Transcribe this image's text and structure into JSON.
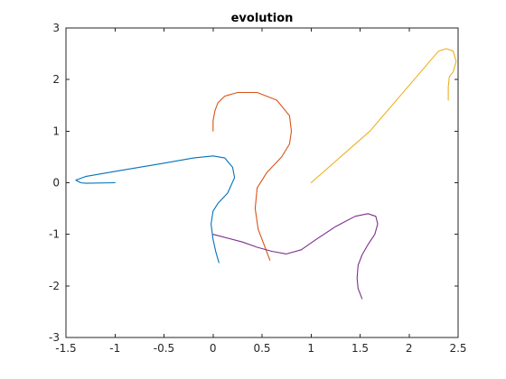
{
  "chart_data": {
    "type": "line",
    "title": "evolution",
    "xlabel": "",
    "ylabel": "",
    "xlim": [
      -1.5,
      2.5
    ],
    "ylim": [
      -3,
      3
    ],
    "xticks": [
      -1.5,
      -1,
      -0.5,
      0,
      0.5,
      1,
      1.5,
      2,
      2.5
    ],
    "yticks": [
      -3,
      -2,
      -1,
      0,
      1,
      2,
      3
    ],
    "xtick_labels": [
      "-1.5",
      "-1",
      "-0.5",
      "0",
      "0.5",
      "1",
      "1.5",
      "2",
      "2.5"
    ],
    "ytick_labels": [
      "-3",
      "-2",
      "-1",
      "0",
      "1",
      "2",
      "3"
    ],
    "grid": false,
    "series": [
      {
        "color": "#0072bd",
        "x": [
          -1.0,
          -1.3,
          -1.35,
          -1.4,
          -1.3,
          -1.0,
          -0.5,
          -0.2,
          0.0,
          0.12,
          0.2,
          0.22,
          0.15,
          0.05,
          0.0,
          -0.02,
          0.0,
          0.03,
          0.06
        ],
        "y": [
          0.0,
          -0.01,
          0.0,
          0.05,
          0.12,
          0.22,
          0.38,
          0.48,
          0.52,
          0.48,
          0.3,
          0.1,
          -0.2,
          -0.4,
          -0.55,
          -0.8,
          -1.1,
          -1.35,
          -1.55
        ]
      },
      {
        "color": "#d95319",
        "x": [
          0.0,
          0.0,
          0.02,
          0.05,
          0.12,
          0.25,
          0.45,
          0.65,
          0.78,
          0.8,
          0.78,
          0.7,
          0.55,
          0.45,
          0.43,
          0.46,
          0.52,
          0.58
        ],
        "y": [
          1.0,
          1.2,
          1.4,
          1.55,
          1.68,
          1.75,
          1.75,
          1.6,
          1.3,
          1.0,
          0.75,
          0.5,
          0.2,
          -0.1,
          -0.5,
          -0.9,
          -1.2,
          -1.5
        ]
      },
      {
        "color": "#edb120",
        "x": [
          1.0,
          1.6,
          2.3,
          2.38,
          2.45,
          2.48,
          2.45,
          2.41,
          2.4,
          2.4
        ],
        "y": [
          0.0,
          1.0,
          2.55,
          2.6,
          2.55,
          2.35,
          2.15,
          2.05,
          1.85,
          1.6
        ]
      },
      {
        "color": "#7e2f8e",
        "x": [
          0.0,
          0.3,
          0.45,
          0.6,
          0.75,
          0.9,
          1.05,
          1.25,
          1.45,
          1.58,
          1.66,
          1.68,
          1.65,
          1.58,
          1.52,
          1.48,
          1.47,
          1.48,
          1.52
        ],
        "y": [
          -1.0,
          -1.15,
          -1.25,
          -1.33,
          -1.38,
          -1.3,
          -1.1,
          -0.85,
          -0.65,
          -0.6,
          -0.65,
          -0.8,
          -1.0,
          -1.2,
          -1.4,
          -1.6,
          -1.85,
          -2.05,
          -2.25
        ]
      }
    ]
  }
}
